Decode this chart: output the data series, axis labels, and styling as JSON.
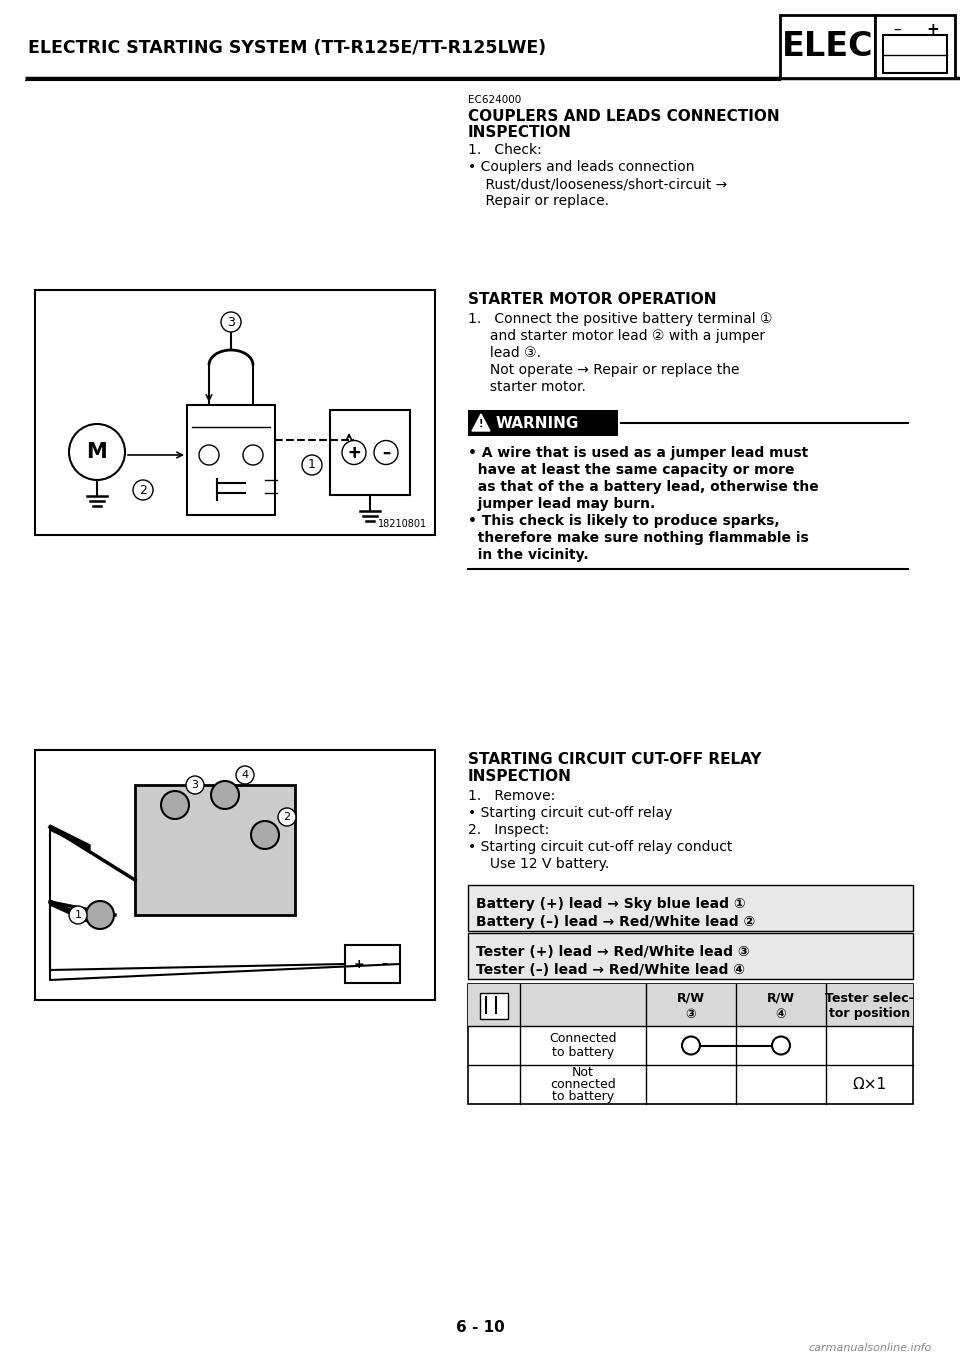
{
  "page_title": "ELECTRIC STARTING SYSTEM (TT-R125E/TT-R125LWE)",
  "elec_label": "ELEC",
  "page_number": "6 - 10",
  "bg_color": "#ffffff",
  "section1_code": "EC624000",
  "section1_title_line1": "COUPLERS AND LEADS CONNECTION",
  "section1_title_line2": "INSPECTION",
  "section1_body": [
    "1.   Check:",
    "• Couplers and leads connection",
    "    Rust/dust/looseness/short-circuit →",
    "    Repair or replace."
  ],
  "section2_title": "STARTER MOTOR OPERATION",
  "section2_body": [
    "1.   Connect the positive battery terminal ①",
    "     and starter motor lead ② with a jumper",
    "     lead ③.",
    "     Not operate → Repair or replace the",
    "     starter motor."
  ],
  "warning_title": "WARNING",
  "warning_body": [
    "• A wire that is used as a jumper lead must",
    "  have at least the same capacity or more",
    "  as that of the a battery lead, otherwise the",
    "  jumper lead may burn.",
    "• This check is likely to produce sparks,",
    "  therefore make sure nothing flammable is",
    "  in the vicinity."
  ],
  "section3_title_line1": "STARTING CIRCUIT CUT-OFF RELAY",
  "section3_title_line2": "INSPECTION",
  "section3_body": [
    "1.   Remove:",
    "• Starting circuit cut-off relay",
    "2.   Inspect:",
    "• Starting circuit cut-off relay conduct",
    "     Use 12 V battery."
  ],
  "table1_line1": "Battery (+) lead → Sky blue lead ①",
  "table1_line2": "Battery (–) lead → Red/White lead ②",
  "table2_line1": "Tester (+) lead → Red/White lead ③",
  "table2_line2": "Tester (–) lead → Red/White lead ④",
  "table_header_rw3": "R/W",
  "table_header_rw3_num": "③",
  "table_header_rw4": "R/W",
  "table_header_rw4_num": "④",
  "table_header_tester": "Tester selec-",
  "table_header_tester2": "tor position",
  "table_row1_label1": "Connected",
  "table_row1_label2": "to battery",
  "table_row2_label1": "Not",
  "table_row2_label2": "connected",
  "table_row2_label3": "to battery",
  "omega_x1": "Ω×1",
  "footer_text": "carmanualsonline.info",
  "img1_code": "18210801"
}
